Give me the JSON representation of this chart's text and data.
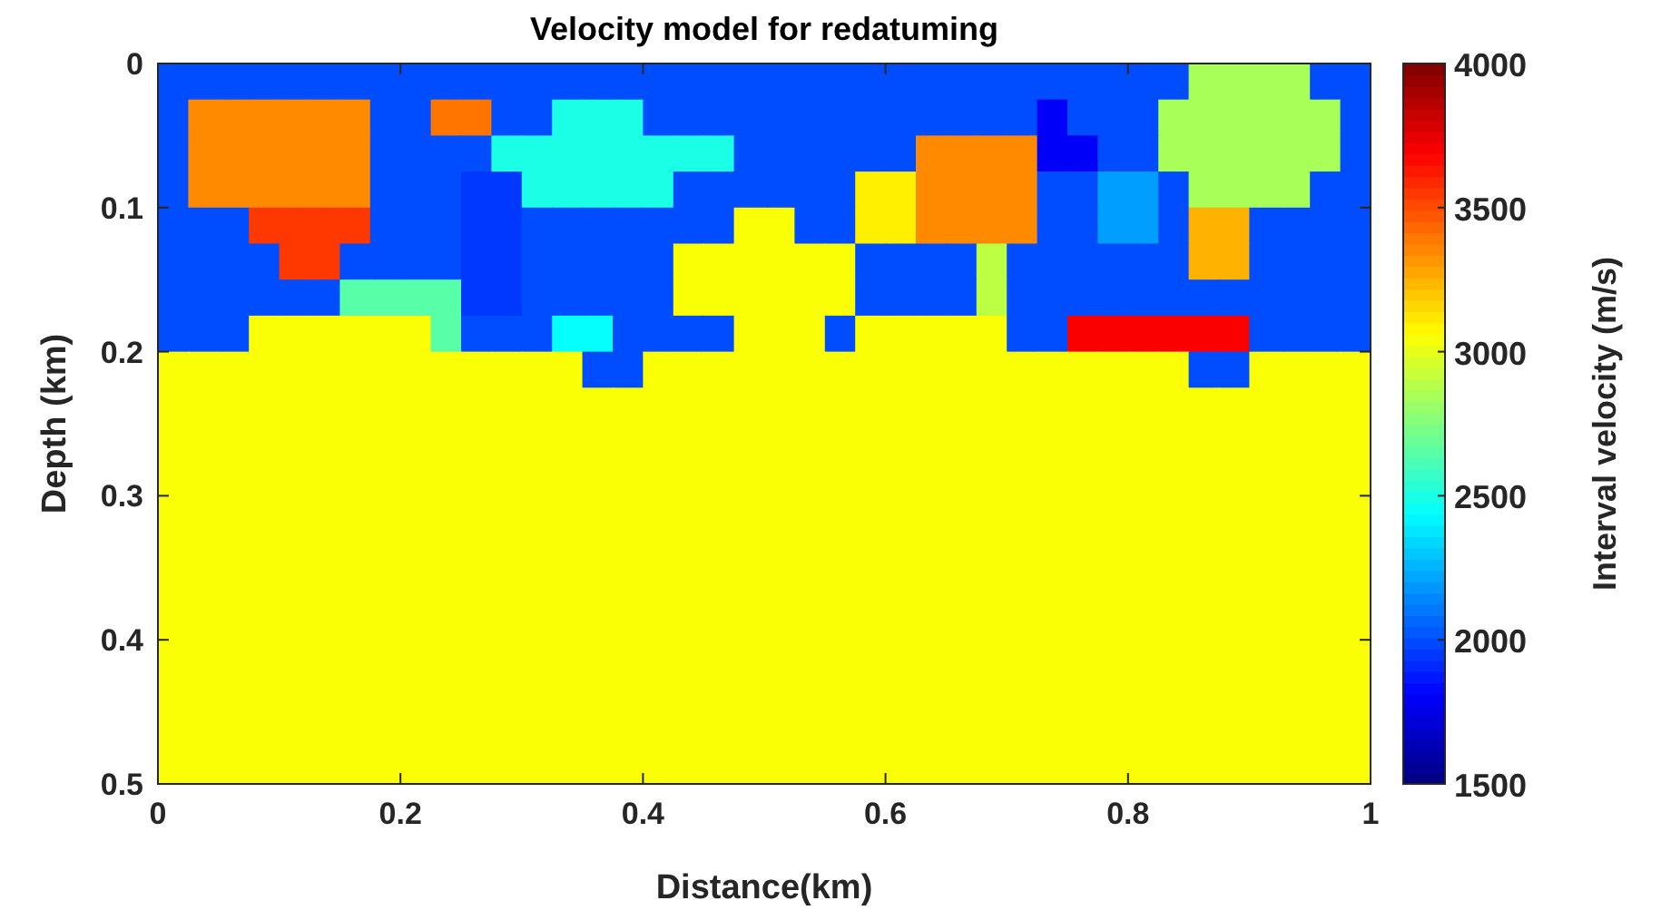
{
  "chart_data": {
    "type": "heatmap",
    "title": "Velocity model for redatuming",
    "xlabel": "Distance(km)",
    "ylabel": "Depth (km)",
    "clabel": "Interval velocity (m/s)",
    "xlim": [
      0,
      1
    ],
    "ylim": [
      0.5,
      0
    ],
    "xticks": [
      0,
      0.2,
      0.4,
      0.6,
      0.8,
      1
    ],
    "yticks": [
      0,
      0.1,
      0.2,
      0.3,
      0.4,
      0.5
    ],
    "clim": [
      1500,
      4000
    ],
    "cticks": [
      1500,
      2000,
      2500,
      3000,
      3500,
      4000
    ],
    "cells": [
      [
        2000,
        2000,
        2000,
        2000,
        2000,
        2000,
        2000,
        2000,
        2000,
        2000,
        2000,
        2000,
        2000,
        2000,
        2000,
        2000,
        2000,
        2000,
        2000,
        2000,
        2000,
        2000,
        2000,
        2000,
        2000,
        2000,
        2000,
        2000,
        2000,
        2000,
        2000,
        2000,
        2000,
        2000,
        2850,
        2850,
        2850,
        2850,
        2000,
        2000
      ],
      [
        2000,
        3350,
        3350,
        3350,
        3350,
        3350,
        3350,
        2000,
        2000,
        3400,
        3400,
        2000,
        2000,
        2500,
        2500,
        2500,
        2000,
        2000,
        2000,
        2000,
        2000,
        2000,
        2000,
        2000,
        2000,
        2000,
        2000,
        2000,
        2000,
        1800,
        2000,
        2000,
        2000,
        2850,
        2850,
        2850,
        2850,
        2850,
        2850,
        2000
      ],
      [
        2000,
        3350,
        3350,
        3350,
        3350,
        3350,
        3350,
        2000,
        2000,
        2000,
        2000,
        2500,
        2500,
        2500,
        2500,
        2500,
        2500,
        2500,
        2500,
        2000,
        2000,
        2000,
        2000,
        2000,
        2000,
        3350,
        3350,
        3350,
        3350,
        1800,
        1800,
        2000,
        2000,
        2850,
        2850,
        2850,
        2850,
        2850,
        2850,
        2000
      ],
      [
        2000,
        3350,
        3350,
        3350,
        3350,
        3350,
        3350,
        2000,
        2000,
        2000,
        1950,
        1950,
        2500,
        2500,
        2500,
        2500,
        2500,
        2000,
        2000,
        2000,
        2000,
        2000,
        2000,
        3100,
        3100,
        3350,
        3350,
        3350,
        3350,
        2000,
        2000,
        2200,
        2200,
        2000,
        2850,
        2850,
        2850,
        2850,
        2000,
        2000
      ],
      [
        2000,
        2000,
        2000,
        3550,
        3550,
        3550,
        3550,
        2000,
        2000,
        2000,
        1950,
        1950,
        2000,
        2000,
        2000,
        2000,
        2000,
        2000,
        2000,
        3050,
        3050,
        2000,
        2000,
        3100,
        3100,
        3350,
        3350,
        3350,
        3350,
        2000,
        2000,
        2200,
        2200,
        2000,
        3250,
        3250,
        2000,
        2000,
        2000,
        2000
      ],
      [
        2000,
        2000,
        2000,
        2000,
        3550,
        3550,
        2000,
        2000,
        2000,
        2000,
        1950,
        1950,
        2000,
        2000,
        2000,
        2000,
        2000,
        3050,
        3050,
        3050,
        3050,
        3050,
        3050,
        2000,
        2000,
        2000,
        2000,
        2900,
        2000,
        2000,
        2000,
        2000,
        2000,
        2000,
        3250,
        3250,
        2000,
        2000,
        2000,
        2000
      ],
      [
        2000,
        2000,
        2000,
        2000,
        2000,
        2000,
        2650,
        2650,
        2650,
        2650,
        1950,
        1950,
        2000,
        2000,
        2000,
        2000,
        2000,
        3050,
        3050,
        3050,
        3050,
        3050,
        3050,
        2000,
        2000,
        2000,
        2000,
        2900,
        2000,
        2000,
        2000,
        2000,
        2000,
        2000,
        2000,
        2000,
        2000,
        2000,
        2000,
        2000
      ],
      [
        2000,
        2000,
        2000,
        3050,
        3050,
        3050,
        3050,
        3050,
        3050,
        2650,
        2000,
        2000,
        2000,
        2450,
        2450,
        2000,
        2000,
        2000,
        2000,
        3050,
        3050,
        3050,
        2000,
        3050,
        3050,
        3050,
        3050,
        3050,
        2000,
        2000,
        3700,
        3700,
        3700,
        3700,
        3700,
        3700,
        2000,
        2000,
        2000,
        2000
      ],
      [
        3050,
        3050,
        3050,
        3050,
        3050,
        3050,
        3050,
        3050,
        3050,
        3050,
        3050,
        3050,
        3050,
        3050,
        2000,
        2000,
        3050,
        3050,
        3050,
        3050,
        3050,
        3050,
        3050,
        3050,
        3050,
        3050,
        3050,
        3050,
        3050,
        3050,
        3050,
        3050,
        3050,
        3050,
        2000,
        2000,
        3050,
        3050,
        3050,
        3050
      ],
      [
        3050,
        3050,
        3050,
        3050,
        3050,
        3050,
        3050,
        3050,
        3050,
        3050,
        3050,
        3050,
        3050,
        3050,
        3050,
        3050,
        3050,
        3050,
        3050,
        3050,
        3050,
        3050,
        3050,
        3050,
        3050,
        3050,
        3050,
        3050,
        3050,
        3050,
        3050,
        3050,
        3050,
        3050,
        3050,
        3050,
        3050,
        3050,
        3050,
        3050
      ],
      [
        3050,
        3050,
        3050,
        3050,
        3050,
        3050,
        3050,
        3050,
        3050,
        3050,
        3050,
        3050,
        3050,
        3050,
        3050,
        3050,
        3050,
        3050,
        3050,
        3050,
        3050,
        3050,
        3050,
        3050,
        3050,
        3050,
        3050,
        3050,
        3050,
        3050,
        3050,
        3050,
        3050,
        3050,
        3050,
        3050,
        3050,
        3050,
        3050,
        3050
      ],
      [
        3050,
        3050,
        3050,
        3050,
        3050,
        3050,
        3050,
        3050,
        3050,
        3050,
        3050,
        3050,
        3050,
        3050,
        3050,
        3050,
        3050,
        3050,
        3050,
        3050,
        3050,
        3050,
        3050,
        3050,
        3050,
        3050,
        3050,
        3050,
        3050,
        3050,
        3050,
        3050,
        3050,
        3050,
        3050,
        3050,
        3050,
        3050,
        3050,
        3050
      ],
      [
        3050,
        3050,
        3050,
        3050,
        3050,
        3050,
        3050,
        3050,
        3050,
        3050,
        3050,
        3050,
        3050,
        3050,
        3050,
        3050,
        3050,
        3050,
        3050,
        3050,
        3050,
        3050,
        3050,
        3050,
        3050,
        3050,
        3050,
        3050,
        3050,
        3050,
        3050,
        3050,
        3050,
        3050,
        3050,
        3050,
        3050,
        3050,
        3050,
        3050
      ],
      [
        3050,
        3050,
        3050,
        3050,
        3050,
        3050,
        3050,
        3050,
        3050,
        3050,
        3050,
        3050,
        3050,
        3050,
        3050,
        3050,
        3050,
        3050,
        3050,
        3050,
        3050,
        3050,
        3050,
        3050,
        3050,
        3050,
        3050,
        3050,
        3050,
        3050,
        3050,
        3050,
        3050,
        3050,
        3050,
        3050,
        3050,
        3050,
        3050,
        3050
      ],
      [
        3050,
        3050,
        3050,
        3050,
        3050,
        3050,
        3050,
        3050,
        3050,
        3050,
        3050,
        3050,
        3050,
        3050,
        3050,
        3050,
        3050,
        3050,
        3050,
        3050,
        3050,
        3050,
        3050,
        3050,
        3050,
        3050,
        3050,
        3050,
        3050,
        3050,
        3050,
        3050,
        3050,
        3050,
        3050,
        3050,
        3050,
        3050,
        3050,
        3050
      ],
      [
        3050,
        3050,
        3050,
        3050,
        3050,
        3050,
        3050,
        3050,
        3050,
        3050,
        3050,
        3050,
        3050,
        3050,
        3050,
        3050,
        3050,
        3050,
        3050,
        3050,
        3050,
        3050,
        3050,
        3050,
        3050,
        3050,
        3050,
        3050,
        3050,
        3050,
        3050,
        3050,
        3050,
        3050,
        3050,
        3050,
        3050,
        3050,
        3050,
        3050
      ],
      [
        3050,
        3050,
        3050,
        3050,
        3050,
        3050,
        3050,
        3050,
        3050,
        3050,
        3050,
        3050,
        3050,
        3050,
        3050,
        3050,
        3050,
        3050,
        3050,
        3050,
        3050,
        3050,
        3050,
        3050,
        3050,
        3050,
        3050,
        3050,
        3050,
        3050,
        3050,
        3050,
        3050,
        3050,
        3050,
        3050,
        3050,
        3050,
        3050,
        3050
      ],
      [
        3050,
        3050,
        3050,
        3050,
        3050,
        3050,
        3050,
        3050,
        3050,
        3050,
        3050,
        3050,
        3050,
        3050,
        3050,
        3050,
        3050,
        3050,
        3050,
        3050,
        3050,
        3050,
        3050,
        3050,
        3050,
        3050,
        3050,
        3050,
        3050,
        3050,
        3050,
        3050,
        3050,
        3050,
        3050,
        3050,
        3050,
        3050,
        3050,
        3050
      ],
      [
        3050,
        3050,
        3050,
        3050,
        3050,
        3050,
        3050,
        3050,
        3050,
        3050,
        3050,
        3050,
        3050,
        3050,
        3050,
        3050,
        3050,
        3050,
        3050,
        3050,
        3050,
        3050,
        3050,
        3050,
        3050,
        3050,
        3050,
        3050,
        3050,
        3050,
        3050,
        3050,
        3050,
        3050,
        3050,
        3050,
        3050,
        3050,
        3050,
        3050
      ],
      [
        3050,
        3050,
        3050,
        3050,
        3050,
        3050,
        3050,
        3050,
        3050,
        3050,
        3050,
        3050,
        3050,
        3050,
        3050,
        3050,
        3050,
        3050,
        3050,
        3050,
        3050,
        3050,
        3050,
        3050,
        3050,
        3050,
        3050,
        3050,
        3050,
        3050,
        3050,
        3050,
        3050,
        3050,
        3050,
        3050,
        3050,
        3050,
        3050,
        3050
      ]
    ]
  }
}
